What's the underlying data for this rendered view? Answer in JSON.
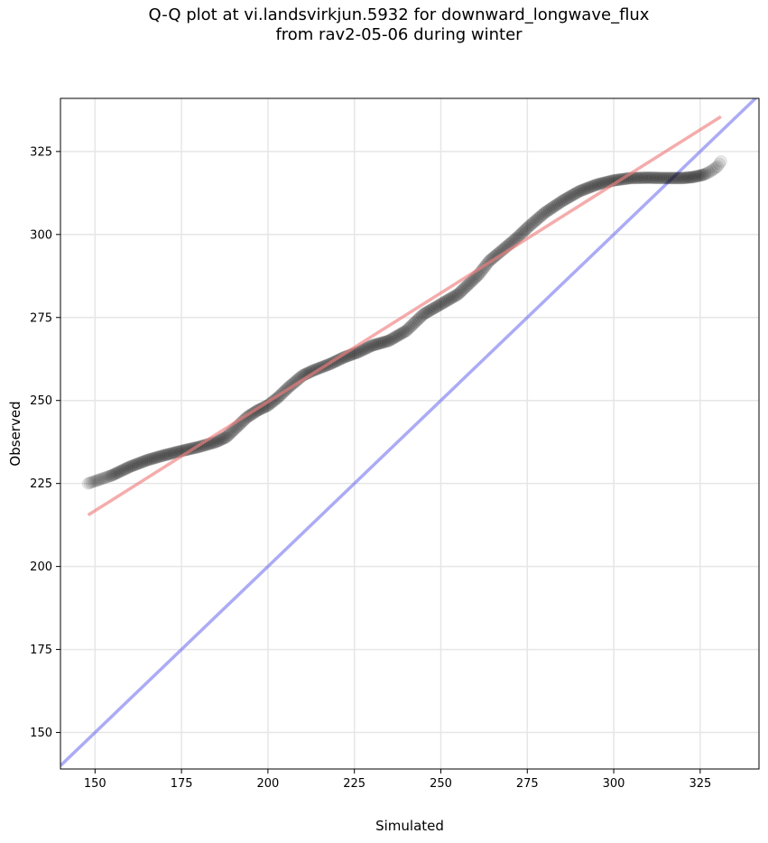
{
  "title_line1": "Q-Q plot at vi.landsvirkjun.5932 for downward_longwave_flux",
  "title_line2": "from rav2-05-06 during winter",
  "chart_data": {
    "type": "scatter",
    "title": "Q-Q plot at vi.landsvirkjun.5932 for downward_longwave_flux from rav2-05-06 during winter",
    "xlabel": "Simulated",
    "ylabel": "Observed",
    "xlim": [
      140,
      342
    ],
    "ylim": [
      139,
      341
    ],
    "xticks": [
      150,
      175,
      200,
      225,
      250,
      275,
      300,
      325
    ],
    "yticks": [
      150,
      175,
      200,
      225,
      250,
      275,
      300,
      325
    ],
    "grid": true,
    "colors": {
      "points": "#000000",
      "fit_line": "#f08080",
      "identity_line": "#6666ee"
    },
    "anchors": [
      [
        148,
        225
      ],
      [
        150,
        225.7
      ],
      [
        155,
        227.5
      ],
      [
        160,
        230
      ],
      [
        165,
        232
      ],
      [
        170,
        233.5
      ],
      [
        175,
        234.8
      ],
      [
        180,
        236
      ],
      [
        185,
        237.5
      ],
      [
        188,
        239
      ],
      [
        191,
        242
      ],
      [
        194,
        245
      ],
      [
        197,
        247
      ],
      [
        200,
        248.5
      ],
      [
        203,
        251
      ],
      [
        206,
        254
      ],
      [
        210,
        257.5
      ],
      [
        213,
        259
      ],
      [
        218,
        261
      ],
      [
        222,
        263
      ],
      [
        226,
        264.5
      ],
      [
        230,
        266.5
      ],
      [
        235,
        268
      ],
      [
        240,
        271
      ],
      [
        245,
        276
      ],
      [
        250,
        279
      ],
      [
        255,
        282
      ],
      [
        258,
        285
      ],
      [
        261,
        288
      ],
      [
        264,
        292
      ],
      [
        268,
        295.5
      ],
      [
        272,
        299
      ],
      [
        275,
        302
      ],
      [
        280,
        306.5
      ],
      [
        285,
        310
      ],
      [
        290,
        313
      ],
      [
        295,
        315
      ],
      [
        300,
        316.3
      ],
      [
        305,
        317
      ],
      [
        310,
        317.1
      ],
      [
        315,
        317
      ],
      [
        320,
        317
      ],
      [
        323,
        317.3
      ],
      [
        326,
        318
      ],
      [
        328,
        319
      ],
      [
        330,
        320.5
      ],
      [
        331,
        322
      ]
    ],
    "fit_line": {
      "start": [
        148,
        215.5
      ],
      "end": [
        331,
        335.5
      ]
    },
    "identity_line": {
      "start": [
        140,
        140
      ],
      "end": [
        342,
        342
      ]
    }
  }
}
